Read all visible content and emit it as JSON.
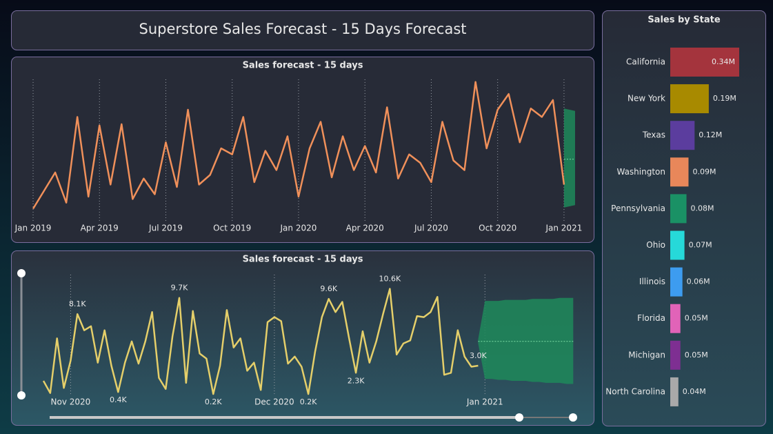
{
  "title": "Superstore Sales Forecast - 15 Days Forecast",
  "chart_data": [
    {
      "type": "line",
      "title": "Sales forecast - 15 days",
      "categories": [
        "Jan 2019",
        null,
        null,
        null,
        null,
        null,
        "Apr 2019",
        null,
        null,
        null,
        null,
        null,
        "Jul 2019",
        null,
        null,
        null,
        null,
        null,
        "Oct 2019",
        null,
        null,
        null,
        null,
        null,
        "Jan 2020",
        null,
        null,
        null,
        null,
        null,
        "Apr 2020",
        null,
        null,
        null,
        null,
        null,
        "Jul 2020",
        null,
        null,
        null,
        null,
        null,
        "Oct 2020",
        null,
        null,
        null,
        null,
        null,
        "Jan 2021",
        null
      ],
      "ylim": [
        0,
        12
      ],
      "series": [
        {
          "color": "#f0905a",
          "values": [
            1.0,
            2.5,
            4.0,
            1.5,
            8.6,
            2.0,
            7.9,
            3.0,
            8.0,
            1.8,
            3.5,
            2.2,
            6.5,
            2.8,
            9.2,
            3.0,
            3.8,
            6.0,
            5.5,
            8.6,
            3.2,
            5.8,
            4.2,
            7.0,
            2.0,
            6.0,
            8.2,
            3.6,
            7.0,
            4.2,
            6.2,
            4.0,
            9.4,
            3.5,
            5.5,
            4.8,
            3.2,
            8.2,
            5.0,
            4.2,
            11.5,
            6.0,
            9.2,
            10.5,
            6.5,
            9.3,
            8.6,
            10.0,
            3.0,
            null
          ]
        }
      ],
      "forecast": {
        "color": "#1f8a5a",
        "values": [
          null,
          null,
          null,
          null,
          null,
          null,
          null,
          null,
          null,
          null,
          null,
          null,
          null,
          null,
          null,
          null,
          null,
          null,
          null,
          null,
          null,
          null,
          null,
          null,
          null,
          null,
          null,
          null,
          null,
          null,
          null,
          null,
          null,
          null,
          null,
          null,
          null,
          null,
          null,
          null,
          null,
          null,
          null,
          null,
          null,
          null,
          null,
          null,
          5.1,
          5.1
        ],
        "lower": [
          null,
          null,
          null,
          null,
          null,
          null,
          null,
          null,
          null,
          null,
          null,
          null,
          null,
          null,
          null,
          null,
          null,
          null,
          null,
          null,
          null,
          null,
          null,
          null,
          null,
          null,
          null,
          null,
          null,
          null,
          null,
          null,
          null,
          null,
          null,
          null,
          null,
          null,
          null,
          null,
          null,
          null,
          null,
          null,
          null,
          null,
          null,
          null,
          1.1,
          1.3
        ],
        "upper": [
          null,
          null,
          null,
          null,
          null,
          null,
          null,
          null,
          null,
          null,
          null,
          null,
          null,
          null,
          null,
          null,
          null,
          null,
          null,
          null,
          null,
          null,
          null,
          null,
          null,
          null,
          null,
          null,
          null,
          null,
          null,
          null,
          null,
          null,
          null,
          null,
          null,
          null,
          null,
          null,
          null,
          null,
          null,
          null,
          null,
          null,
          null,
          null,
          9.3,
          9.1
        ]
      }
    },
    {
      "type": "line",
      "title": "Sales forecast - 15 days",
      "categories": [
        null,
        null,
        null,
        null,
        "Nov 2020",
        null,
        null,
        null,
        null,
        null,
        null,
        null,
        null,
        null,
        null,
        null,
        null,
        null,
        null,
        null,
        null,
        null,
        null,
        null,
        null,
        null,
        null,
        null,
        null,
        null,
        null,
        null,
        null,
        null,
        "Dec 2020",
        null,
        null,
        null,
        null,
        null,
        null,
        null,
        null,
        null,
        null,
        null,
        null,
        null,
        null,
        null,
        null,
        null,
        null,
        null,
        null,
        null,
        null,
        null,
        null,
        null,
        null,
        null,
        null,
        null,
        null,
        "Jan 2021",
        null,
        null,
        null,
        null,
        null,
        null,
        null,
        null,
        null,
        null,
        null,
        null,
        null
      ],
      "ylim": [
        0,
        12
      ],
      "series": [
        {
          "color": "#e5cf6a",
          "values": [
            1.5,
            0.3,
            5.7,
            0.8,
            3.5,
            8.1,
            6.5,
            6.9,
            3.3,
            6.5,
            3.0,
            0.4,
            3.3,
            5.4,
            3.2,
            5.4,
            8.3,
            1.8,
            0.7,
            5.9,
            9.7,
            1.3,
            8.4,
            4.2,
            3.7,
            0.2,
            3.0,
            8.5,
            4.8,
            5.7,
            2.5,
            3.3,
            0.6,
            7.3,
            7.8,
            7.4,
            3.2,
            3.9,
            2.9,
            0.2,
            4.4,
            7.8,
            9.6,
            8.3,
            9.3,
            5.7,
            2.3,
            6.4,
            3.3,
            5.4,
            8.1,
            10.6,
            4.1,
            5.2,
            5.5,
            7.9,
            7.8,
            8.3,
            9.8,
            2.1,
            2.3,
            6.5,
            3.9,
            2.9,
            3.0,
            null,
            null,
            null,
            null,
            null,
            null,
            null,
            null,
            null,
            null,
            null,
            null,
            null,
            null
          ],
          "value_labels": [
            null,
            null,
            null,
            null,
            null,
            "8.1K",
            null,
            null,
            null,
            null,
            null,
            "0.4K",
            null,
            null,
            null,
            null,
            null,
            null,
            null,
            null,
            "9.7K",
            null,
            null,
            null,
            null,
            "0.2K",
            null,
            null,
            null,
            null,
            null,
            null,
            null,
            null,
            null,
            null,
            null,
            null,
            null,
            "0.2K",
            null,
            null,
            "9.6K",
            null,
            null,
            null,
            "2.3K",
            null,
            null,
            null,
            null,
            "10.6K",
            null,
            null,
            null,
            null,
            null,
            null,
            null,
            null,
            null,
            null,
            null,
            null,
            "3.0K",
            null,
            null,
            null,
            null,
            null,
            null,
            null,
            null,
            null,
            null,
            null,
            null,
            null,
            null
          ]
        }
      ],
      "forecast": {
        "color": "#1f8a5a",
        "values": [
          null,
          null,
          null,
          null,
          null,
          null,
          null,
          null,
          null,
          null,
          null,
          null,
          null,
          null,
          null,
          null,
          null,
          null,
          null,
          null,
          null,
          null,
          null,
          null,
          null,
          null,
          null,
          null,
          null,
          null,
          null,
          null,
          null,
          null,
          null,
          null,
          null,
          null,
          null,
          null,
          null,
          null,
          null,
          null,
          null,
          null,
          null,
          null,
          null,
          null,
          null,
          null,
          null,
          null,
          null,
          null,
          null,
          null,
          null,
          null,
          null,
          null,
          null,
          null,
          5.4,
          5.4,
          5.4,
          5.4,
          5.4,
          5.4,
          5.4,
          5.4,
          5.4,
          5.4,
          5.4,
          5.4,
          5.4,
          5.4,
          5.4
        ],
        "lower": [
          null,
          null,
          null,
          null,
          null,
          null,
          null,
          null,
          null,
          null,
          null,
          null,
          null,
          null,
          null,
          null,
          null,
          null,
          null,
          null,
          null,
          null,
          null,
          null,
          null,
          null,
          null,
          null,
          null,
          null,
          null,
          null,
          null,
          null,
          null,
          null,
          null,
          null,
          null,
          null,
          null,
          null,
          null,
          null,
          null,
          null,
          null,
          null,
          null,
          null,
          null,
          null,
          null,
          null,
          null,
          null,
          null,
          null,
          null,
          null,
          null,
          null,
          null,
          null,
          5.2,
          1.7,
          1.7,
          1.6,
          1.6,
          1.5,
          1.5,
          1.5,
          1.4,
          1.4,
          1.3,
          1.3,
          1.3,
          1.2,
          1.2
        ],
        "upper": [
          null,
          null,
          null,
          null,
          null,
          null,
          null,
          null,
          null,
          null,
          null,
          null,
          null,
          null,
          null,
          null,
          null,
          null,
          null,
          null,
          null,
          null,
          null,
          null,
          null,
          null,
          null,
          null,
          null,
          null,
          null,
          null,
          null,
          null,
          null,
          null,
          null,
          null,
          null,
          null,
          null,
          null,
          null,
          null,
          null,
          null,
          null,
          null,
          null,
          null,
          null,
          null,
          null,
          null,
          null,
          null,
          null,
          null,
          null,
          null,
          null,
          null,
          null,
          null,
          5.6,
          9.4,
          9.4,
          9.4,
          9.5,
          9.5,
          9.5,
          9.5,
          9.6,
          9.6,
          9.6,
          9.6,
          9.7,
          9.7,
          9.7
        ]
      }
    },
    {
      "type": "bar",
      "orientation": "horizontal",
      "title": "Sales by State",
      "categories": [
        "California",
        "New York",
        "Texas",
        "Washington",
        "Pennsylvania",
        "Ohio",
        "Illinois",
        "Florida",
        "Michigan",
        "North Carolina"
      ],
      "values": [
        0.34,
        0.19,
        0.12,
        0.09,
        0.08,
        0.07,
        0.06,
        0.05,
        0.05,
        0.04
      ],
      "value_labels": [
        "0.34M",
        "0.19M",
        "0.12M",
        "0.09M",
        "0.08M",
        "0.07M",
        "0.06M",
        "0.05M",
        "0.05M",
        "0.04M"
      ],
      "colors": [
        "#a4343d",
        "#a88a00",
        "#5b3d9e",
        "#e8875a",
        "#1a9165",
        "#26d9d9",
        "#3d9cf0",
        "#e163b8",
        "#7e2f92",
        "#a9a9a9"
      ],
      "xlim": [
        0,
        0.34
      ]
    }
  ]
}
